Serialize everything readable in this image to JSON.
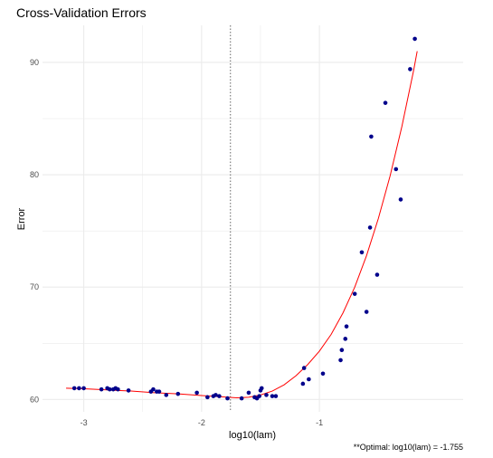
{
  "chart_data": {
    "type": "scatter",
    "title": "Cross-Validation Errors",
    "xlabel": "log10(lam)",
    "ylabel": "Error",
    "caption": "**Optimal: log10(lam) = -1.755",
    "xlim": [
      -3.35,
      0.22
    ],
    "ylim": [
      58.9,
      93.3
    ],
    "x_ticks": [
      -3,
      -2,
      -1
    ],
    "x_tick_labels": [
      "-3",
      "-2",
      "-1"
    ],
    "y_ticks": [
      60,
      70,
      80,
      90
    ],
    "y_tick_labels": [
      "60",
      "70",
      "80",
      "90"
    ],
    "grid": true,
    "optimal_x": -1.755,
    "colors": {
      "points": "#00008b",
      "fit": "#ff0000",
      "vline": "#666666",
      "grid": "#ebebeb",
      "background": "#ffffff"
    },
    "series": [
      {
        "type": "scatter",
        "x": [
          -3.08,
          -3.04,
          -3.0,
          -2.85,
          -2.8,
          -2.78,
          -2.75,
          -2.73,
          -2.71,
          -2.62,
          -2.43,
          -2.41,
          -2.38,
          -2.36,
          -2.3,
          -2.2,
          -2.04,
          -1.95,
          -1.9,
          -1.88,
          -1.85,
          -1.78,
          -1.66,
          -1.6,
          -1.55,
          -1.53,
          -1.51,
          -1.5,
          -1.49,
          -1.45,
          -1.4,
          -1.37,
          -1.14,
          -1.13,
          -1.09,
          -0.97,
          -0.82,
          -0.81,
          -0.78,
          -0.77,
          -0.7,
          -0.64,
          -0.6,
          -0.57,
          -0.56,
          -0.51,
          -0.44,
          -0.35,
          -0.31,
          -0.23,
          -0.19
        ],
        "y": [
          61.0,
          61.0,
          61.0,
          60.9,
          61.0,
          60.9,
          60.9,
          61.0,
          60.9,
          60.8,
          60.7,
          60.9,
          60.7,
          60.7,
          60.4,
          60.5,
          60.6,
          60.2,
          60.3,
          60.4,
          60.3,
          60.1,
          60.1,
          60.6,
          60.2,
          60.1,
          60.3,
          60.8,
          61.0,
          60.4,
          60.3,
          60.3,
          61.4,
          62.8,
          61.8,
          62.3,
          63.5,
          64.4,
          65.4,
          66.5,
          69.4,
          73.1,
          67.8,
          75.3,
          83.4,
          71.1,
          86.4,
          80.5,
          77.8,
          89.4,
          92.1
        ]
      },
      {
        "type": "line",
        "x": [
          -3.15,
          -3.0,
          -2.8,
          -2.6,
          -2.4,
          -2.2,
          -2.0,
          -1.85,
          -1.7,
          -1.6,
          -1.5,
          -1.4,
          -1.3,
          -1.2,
          -1.1,
          -1.0,
          -0.9,
          -0.8,
          -0.7,
          -0.6,
          -0.5,
          -0.4,
          -0.3,
          -0.2,
          -0.17
        ],
        "y": [
          61.0,
          60.95,
          60.85,
          60.75,
          60.6,
          60.5,
          60.35,
          60.25,
          60.15,
          60.2,
          60.4,
          60.75,
          61.3,
          62.1,
          63.1,
          64.3,
          65.8,
          67.7,
          70.0,
          72.8,
          76.1,
          79.9,
          84.3,
          89.3,
          91.0
        ]
      }
    ]
  }
}
